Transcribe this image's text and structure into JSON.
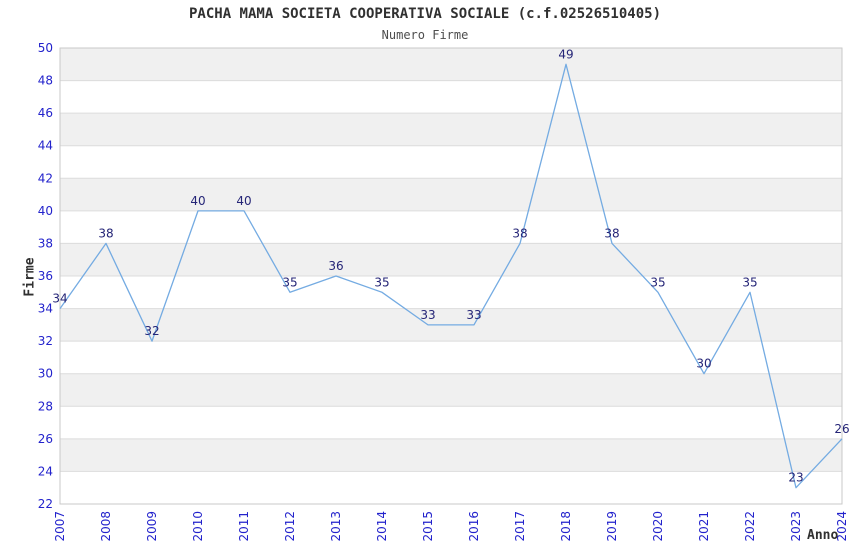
{
  "chart_data": {
    "type": "line",
    "title": "PACHA MAMA SOCIETA COOPERATIVA SOCIALE (c.f.02526510405)",
    "subtitle": "Numero Firme",
    "xlabel": "Anno",
    "ylabel": "Firme",
    "categories": [
      "2007",
      "2008",
      "2009",
      "2010",
      "2011",
      "2012",
      "2013",
      "2014",
      "2015",
      "2016",
      "2017",
      "2018",
      "2019",
      "2020",
      "2021",
      "2022",
      "2023",
      "2024"
    ],
    "values": [
      34,
      38,
      32,
      40,
      40,
      35,
      36,
      35,
      33,
      33,
      38,
      49,
      38,
      35,
      30,
      35,
      23,
      26
    ],
    "ylim": [
      22,
      50
    ],
    "ytick_step": 2,
    "grid": true,
    "legend_position": "none",
    "data_labels_shown": true,
    "colors": {
      "line": "#74abe2",
      "tick_label": "#2323cc",
      "data_label": "#252577",
      "band_white": "#ffffff",
      "band_gray": "#f0f0f0",
      "gridline": "#dcdcdc",
      "plot_border": "#c9c9c9",
      "title_text": "#303030",
      "subtitle_text": "#4d4d4d"
    }
  }
}
